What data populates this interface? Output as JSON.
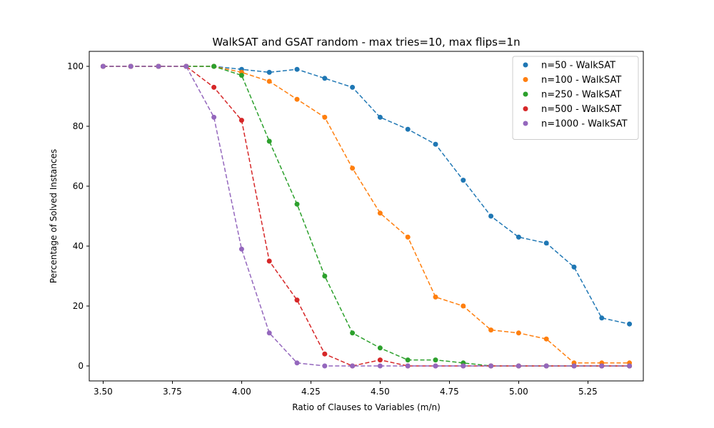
{
  "chart_data": {
    "type": "line",
    "title": "WalkSAT and GSAT random - max tries=10, max flips=1n",
    "xlabel": "Ratio of Clauses to Variables (m/n)",
    "ylabel": "Percentage of Solved Instances",
    "xlim": [
      3.45,
      5.45
    ],
    "ylim": [
      -5,
      105
    ],
    "xticks": [
      3.5,
      3.75,
      4.0,
      4.25,
      4.5,
      4.75,
      5.0,
      5.25
    ],
    "xtick_labels": [
      "3.50",
      "3.75",
      "4.00",
      "4.25",
      "4.50",
      "4.75",
      "5.00",
      "5.25"
    ],
    "yticks": [
      0,
      20,
      40,
      60,
      80,
      100
    ],
    "ytick_labels": [
      "0",
      "20",
      "40",
      "60",
      "80",
      "100"
    ],
    "grid": false,
    "legend_position": "top-right",
    "line_style": "dashed",
    "x": [
      3.5,
      3.6,
      3.7,
      3.8,
      3.9,
      4.0,
      4.1,
      4.2,
      4.3,
      4.4,
      4.5,
      4.6,
      4.7,
      4.8,
      4.9,
      5.0,
      5.1,
      5.2,
      5.3,
      5.4
    ],
    "series": [
      {
        "name": "n=50 - WalkSAT",
        "color": "#1f77b4",
        "values": [
          100,
          100,
          100,
          100,
          100,
          99,
          98,
          99,
          96,
          93,
          83,
          79,
          74,
          62,
          50,
          43,
          41,
          33,
          16,
          14
        ]
      },
      {
        "name": "n=100 - WalkSAT",
        "color": "#ff7f0e",
        "values": [
          100,
          100,
          100,
          100,
          100,
          98,
          95,
          89,
          83,
          66,
          51,
          43,
          23,
          20,
          12,
          11,
          9,
          1,
          1,
          1
        ]
      },
      {
        "name": "n=250 - WalkSAT",
        "color": "#2ca02c",
        "values": [
          100,
          100,
          100,
          100,
          100,
          97,
          75,
          54,
          30,
          11,
          6,
          2,
          2,
          1,
          0,
          0,
          0,
          0,
          0,
          0
        ]
      },
      {
        "name": "n=500 - WalkSAT",
        "color": "#d62728",
        "values": [
          100,
          100,
          100,
          100,
          93,
          82,
          35,
          22,
          4,
          0,
          2,
          0,
          0,
          0,
          0,
          0,
          0,
          0,
          0,
          0
        ]
      },
      {
        "name": "n=1000 - WalkSAT",
        "color": "#9467bd",
        "values": [
          100,
          100,
          100,
          100,
          83,
          39,
          11,
          1,
          0,
          0,
          0,
          0,
          0,
          0,
          0,
          0,
          0,
          0,
          0,
          0
        ]
      }
    ]
  }
}
